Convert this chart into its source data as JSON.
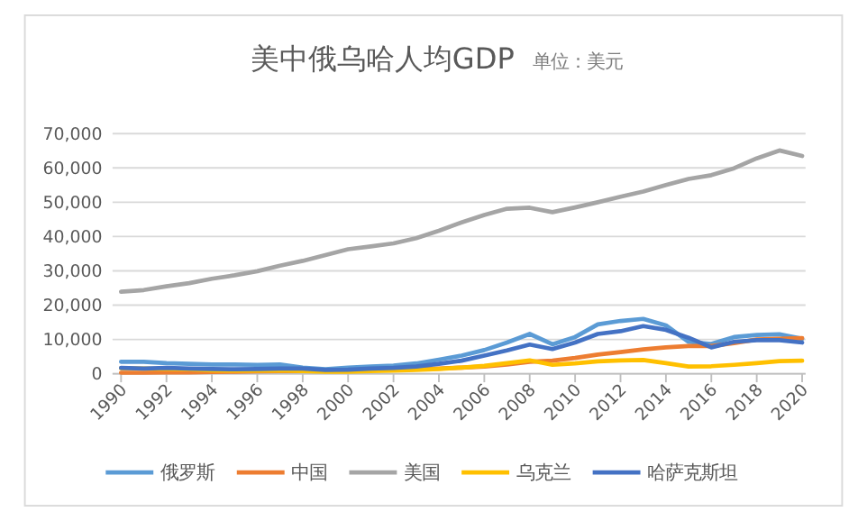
{
  "chart_data": {
    "type": "line",
    "title": "美中俄乌哈人均GDP",
    "subtitle": "单位：美元",
    "categories": [
      "1990",
      null,
      "1992",
      null,
      "1994",
      null,
      "1996",
      null,
      "1998",
      null,
      "2000",
      null,
      "2002",
      null,
      "2004",
      null,
      "2006",
      null,
      "2008",
      null,
      "2010",
      null,
      "2012",
      null,
      "2014",
      null,
      "2016",
      null,
      "2018",
      null,
      "2020"
    ],
    "series": [
      {
        "name": "俄罗斯",
        "color": "#5b9bd5",
        "values": [
          3500,
          3500,
          3100,
          2900,
          2700,
          2700,
          2600,
          2700,
          1800,
          1300,
          1800,
          2100,
          2400,
          3000,
          4100,
          5300,
          6900,
          9100,
          11600,
          8600,
          10700,
          14400,
          15400,
          16000,
          14100,
          9300,
          8700,
          10700,
          11300,
          11500,
          10200
        ]
      },
      {
        "name": "中国",
        "color": "#ed7d31",
        "values": [
          300,
          300,
          400,
          400,
          500,
          600,
          700,
          800,
          800,
          900,
          1000,
          1100,
          1100,
          1300,
          1500,
          1800,
          2100,
          2700,
          3500,
          3800,
          4600,
          5600,
          6300,
          7100,
          7700,
          8100,
          8100,
          8900,
          10000,
          10200,
          10400
        ]
      },
      {
        "name": "美国",
        "color": "#a5a5a5",
        "values": [
          23900,
          24400,
          25500,
          26400,
          27700,
          28700,
          29900,
          31500,
          32900,
          34600,
          36300,
          37100,
          38000,
          39500,
          41700,
          44100,
          46300,
          48100,
          48400,
          47100,
          48500,
          50000,
          51600,
          53100,
          55000,
          56800,
          57900,
          59900,
          62800,
          65100,
          63500
        ]
      },
      {
        "name": "乌克兰",
        "color": "#ffc000",
        "values": [
          1600,
          1500,
          1400,
          1300,
          1000,
          900,
          900,
          1000,
          800,
          600,
          600,
          800,
          900,
          1100,
          1400,
          1800,
          2300,
          3100,
          3900,
          2600,
          3000,
          3600,
          3900,
          4000,
          3100,
          2100,
          2200,
          2600,
          3100,
          3700,
          3800
        ]
      },
      {
        "name": "哈萨克斯坦",
        "color": "#4472c4",
        "values": [
          1700,
          1500,
          1700,
          1500,
          1400,
          1300,
          1400,
          1500,
          1500,
          1100,
          1200,
          1500,
          1700,
          2100,
          2900,
          3800,
          5300,
          6800,
          8500,
          7200,
          9100,
          11600,
          12400,
          13900,
          12800,
          10500,
          7700,
          9300,
          9800,
          9800,
          9100
        ]
      }
    ],
    "ylim": [
      0,
      70000
    ],
    "yticks": [
      {
        "value": 0,
        "label": "0"
      },
      {
        "value": 10000,
        "label": "10,000"
      },
      {
        "value": 20000,
        "label": "20,000"
      },
      {
        "value": 30000,
        "label": "30,000"
      },
      {
        "value": 40000,
        "label": "40,000"
      },
      {
        "value": 50000,
        "label": "50,000"
      },
      {
        "value": 60000,
        "label": "60,000"
      },
      {
        "value": 70000,
        "label": "70,000"
      }
    ],
    "grid": "y",
    "legend": "bottom",
    "marker": "none",
    "line_style": "solid"
  }
}
